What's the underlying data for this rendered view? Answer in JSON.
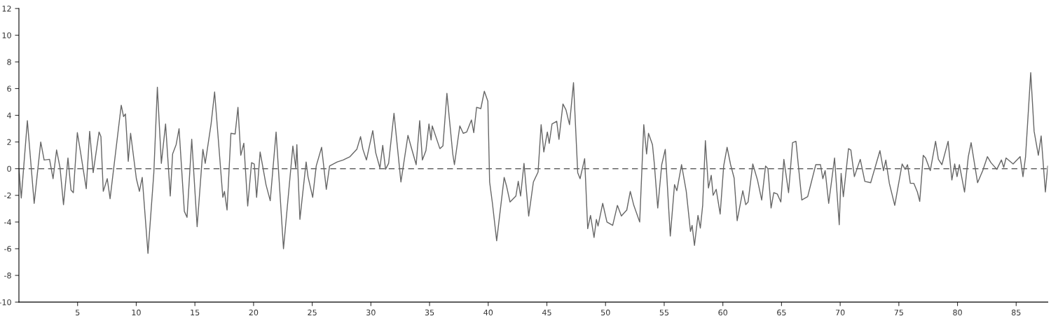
{
  "chart_data": {
    "type": "line",
    "xlim": [
      0,
      87.7
    ],
    "ylim": [
      -10,
      12
    ],
    "xticks": [
      5,
      10,
      15,
      20,
      25,
      30,
      35,
      40,
      45,
      50,
      55,
      60,
      65,
      70,
      75,
      80,
      85
    ],
    "yticks": [
      -10,
      -8,
      -6,
      -4,
      -2,
      0,
      2,
      4,
      6,
      8,
      10,
      12
    ],
    "grid": false,
    "marker": "none",
    "line_style": "solid",
    "ref_lines": [
      {
        "axis": "y",
        "value": 0,
        "color": "#666666",
        "line_style": "dashed"
      }
    ],
    "series": [
      {
        "color": "#666666",
        "x": [
          0.0,
          0.2,
          0.72,
          1.3,
          1.86,
          2.15,
          2.61,
          2.91,
          3.21,
          3.5,
          3.8,
          4.18,
          4.44,
          4.64,
          4.98,
          5.24,
          5.74,
          6.03,
          6.33,
          6.83,
          6.99,
          7.19,
          7.53,
          7.77,
          8.72,
          8.92,
          9.08,
          9.32,
          9.52,
          10.01,
          10.27,
          10.51,
          11.0,
          11.5,
          11.8,
          12.14,
          12.5,
          12.9,
          13.1,
          13.4,
          13.65,
          14.1,
          14.33,
          14.73,
          15.19,
          15.68,
          15.88,
          16.38,
          16.68,
          17.38,
          17.52,
          17.74,
          18.07,
          18.43,
          18.67,
          18.91,
          19.17,
          19.5,
          19.83,
          20.06,
          20.26,
          20.56,
          21.06,
          21.42,
          21.92,
          22.55,
          23.35,
          23.6,
          23.69,
          23.95,
          24.48,
          24.64,
          25.04,
          25.34,
          25.8,
          26.2,
          26.48,
          27.13,
          27.63,
          28.22,
          28.8,
          29.12,
          29.32,
          29.62,
          30.16,
          30.41,
          30.77,
          31.01,
          31.25,
          31.51,
          31.97,
          32.56,
          33.16,
          33.44,
          33.86,
          34.16,
          34.39,
          34.69,
          34.95,
          35.13,
          35.23,
          35.88,
          36.14,
          36.48,
          36.98,
          37.12,
          37.58,
          37.87,
          38.17,
          38.57,
          38.77,
          39.01,
          39.37,
          39.67,
          39.97,
          40.12,
          40.36,
          40.72,
          41.36,
          41.56,
          41.86,
          42.36,
          42.56,
          42.76,
          43.05,
          43.45,
          43.85,
          44.25,
          44.51,
          44.74,
          45.04,
          45.2,
          45.44,
          45.84,
          46.03,
          46.37,
          46.63,
          46.93,
          47.27,
          47.63,
          47.83,
          48.22,
          48.48,
          48.72,
          49.02,
          49.22,
          49.36,
          49.76,
          50.12,
          50.61,
          51.01,
          51.35,
          51.81,
          52.11,
          52.41,
          52.91,
          53.26,
          53.5,
          53.66,
          54.0,
          54.15,
          54.45,
          54.79,
          55.09,
          55.52,
          55.88,
          56.08,
          56.48,
          56.88,
          57.24,
          57.38,
          57.58,
          57.88,
          58.08,
          58.28,
          58.51,
          58.77,
          59.01,
          59.17,
          59.43,
          59.77,
          60.07,
          60.36,
          60.66,
          60.96,
          61.22,
          61.7,
          61.95,
          62.15,
          62.55,
          62.95,
          63.31,
          63.64,
          63.84,
          64.11,
          64.34,
          64.64,
          64.94,
          65.2,
          65.6,
          65.94,
          66.23,
          66.73,
          67.23,
          67.53,
          67.92,
          68.32,
          68.52,
          68.72,
          69.02,
          69.52,
          69.92,
          70.08,
          70.27,
          70.71,
          70.91,
          71.21,
          71.71,
          72.1,
          72.6,
          73.39,
          73.69,
          73.89,
          74.19,
          74.65,
          75.28,
          75.54,
          75.74,
          75.98,
          76.28,
          76.58,
          76.78,
          77.08,
          77.28,
          77.68,
          78.13,
          78.37,
          78.67,
          79.2,
          79.52,
          79.76,
          79.96,
          80.16,
          80.6,
          80.92,
          81.16,
          81.71,
          82.15,
          82.55,
          82.85,
          83.35,
          83.74,
          83.94,
          84.14,
          84.74,
          85.34,
          85.58,
          85.8,
          86.24,
          86.53,
          86.89,
          87.13,
          87.49,
          87.69
        ],
        "values": [
          0.0,
          -2.2,
          3.6,
          -2.6,
          2.0,
          0.65,
          0.7,
          -0.75,
          1.4,
          0.1,
          -2.7,
          0.8,
          -1.6,
          -1.8,
          2.7,
          1.3,
          -1.5,
          2.8,
          -0.3,
          2.75,
          2.4,
          -1.7,
          -0.75,
          -2.25,
          4.75,
          3.9,
          4.1,
          0.55,
          2.65,
          -0.75,
          -1.7,
          -0.65,
          -6.35,
          -0.3,
          6.1,
          0.4,
          3.35,
          -2.05,
          1.1,
          1.8,
          3.0,
          -3.2,
          -3.65,
          2.2,
          -4.35,
          1.45,
          0.4,
          3.35,
          5.75,
          -2.15,
          -1.7,
          -3.1,
          2.65,
          2.6,
          4.6,
          1.0,
          1.9,
          -2.8,
          0.45,
          0.35,
          -2.15,
          1.25,
          -1.2,
          -2.4,
          2.75,
          -6.0,
          1.7,
          0.05,
          1.8,
          -3.8,
          0.5,
          -0.6,
          -2.15,
          0.2,
          1.6,
          -1.55,
          0.2,
          0.5,
          0.65,
          0.9,
          1.45,
          2.4,
          1.45,
          0.65,
          2.85,
          1.2,
          0.05,
          1.75,
          -0.05,
          0.4,
          4.15,
          -1.0,
          2.5,
          1.6,
          0.3,
          3.6,
          0.65,
          1.35,
          3.35,
          2.15,
          3.2,
          1.5,
          1.7,
          5.65,
          1.1,
          0.3,
          3.2,
          2.65,
          2.75,
          3.65,
          2.7,
          4.6,
          4.5,
          5.8,
          5.05,
          -1.0,
          -2.6,
          -5.4,
          -0.65,
          -1.3,
          -2.5,
          -2.05,
          -0.95,
          -2.05,
          0.4,
          -3.55,
          -1.0,
          -0.25,
          3.3,
          1.25,
          2.75,
          1.9,
          3.35,
          3.55,
          2.2,
          4.85,
          4.4,
          3.3,
          6.45,
          -0.3,
          -0.75,
          0.75,
          -4.5,
          -3.5,
          -5.15,
          -3.8,
          -4.3,
          -2.6,
          -4.0,
          -4.25,
          -2.75,
          -3.55,
          -3.1,
          -1.7,
          -2.75,
          -4.0,
          3.3,
          1.1,
          2.65,
          1.8,
          0.45,
          -2.95,
          0.3,
          1.45,
          -5.05,
          -1.2,
          -1.65,
          0.3,
          -1.7,
          -4.7,
          -4.25,
          -5.75,
          -3.5,
          -4.45,
          -2.75,
          2.1,
          -1.45,
          -0.5,
          -2.0,
          -1.55,
          -3.4,
          0.2,
          1.6,
          0.3,
          -0.7,
          -3.9,
          -1.65,
          -2.7,
          -2.5,
          0.35,
          -0.85,
          -2.35,
          0.2,
          0.0,
          -2.95,
          -1.8,
          -1.9,
          -2.5,
          0.7,
          -1.8,
          1.95,
          2.05,
          -2.35,
          -2.1,
          -1.05,
          0.3,
          0.3,
          -0.75,
          -0.15,
          -2.6,
          0.8,
          -4.2,
          -0.35,
          -2.1,
          1.5,
          1.4,
          -0.6,
          0.7,
          -0.95,
          -1.05,
          1.35,
          -0.15,
          0.65,
          -1.1,
          -2.75,
          0.35,
          -0.05,
          0.3,
          -1.1,
          -1.1,
          -1.75,
          -2.45,
          1.0,
          0.8,
          -0.15,
          2.05,
          0.7,
          0.3,
          2.05,
          -0.85,
          0.35,
          -0.6,
          0.3,
          -1.75,
          0.9,
          1.95,
          -1.05,
          -0.15,
          0.9,
          0.45,
          -0.05,
          0.65,
          0.1,
          0.8,
          0.35,
          0.9,
          -0.6,
          0.9,
          7.2,
          2.8,
          1.0,
          2.45,
          -1.75,
          0.2
        ]
      }
    ]
  }
}
